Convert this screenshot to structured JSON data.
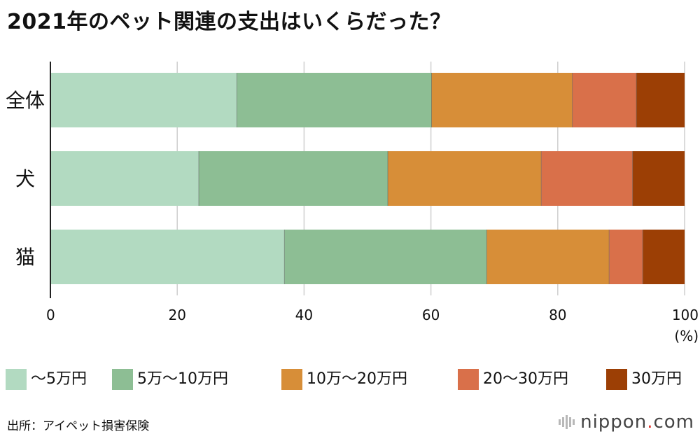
{
  "colors": {
    "series": [
      "#b2dac1",
      "#8dbe94",
      "#d78e38",
      "#d9704a",
      "#9c3f05"
    ],
    "grid": "#cfcfcf",
    "axis": "#222222",
    "brand_bars": "#b8b8b8"
  },
  "chart_data": {
    "type": "bar",
    "orientation": "horizontal",
    "stacked": true,
    "title": "2021年のペット関連の支出はいくらだった？",
    "categories": [
      "全体",
      "犬",
      "猫"
    ],
    "series": [
      {
        "name": "〜5万円",
        "values": [
          29.4,
          23.4,
          36.9
        ]
      },
      {
        "name": "5万〜10万円",
        "values": [
          30.7,
          29.8,
          31.9
        ]
      },
      {
        "name": "10万〜20万円",
        "values": [
          22.2,
          24.2,
          19.3
        ]
      },
      {
        "name": "20〜30万円",
        "values": [
          10.1,
          14.4,
          5.3
        ]
      },
      {
        "name": "30万円",
        "values": [
          7.6,
          8.2,
          6.6
        ]
      }
    ],
    "xlim": [
      0,
      100
    ],
    "xticks": [
      "0",
      "20",
      "40",
      "60",
      "80",
      "100"
    ],
    "xunit": "(%)",
    "grid": true,
    "legend": "bottom"
  },
  "source": "出所：アイペット損害保険",
  "brand": {
    "name": "nippon",
    "dot": ".",
    "suffix": "com"
  }
}
